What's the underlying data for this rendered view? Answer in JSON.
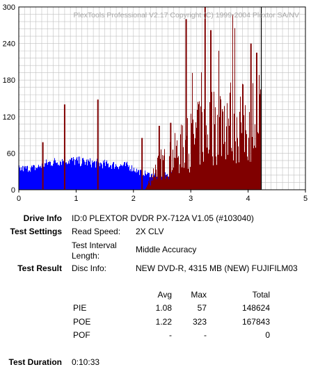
{
  "watermark": "PlexTools Professional V2.17 Copyright (C) 1999-2004 Plextor SA/NV",
  "colors": {
    "poe": "#800000",
    "pie": "#0000ff",
    "grid": "#c0c0c0",
    "marker": "#000000"
  },
  "chart_data": {
    "type": "bar",
    "xlim": [
      0,
      5
    ],
    "ylim": [
      0,
      300
    ],
    "xticks": [
      0,
      1,
      2,
      3,
      4,
      5
    ],
    "yticks": [
      0,
      60,
      120,
      180,
      240,
      300
    ],
    "grid": true,
    "end_marker_x": 4.23,
    "series": [
      {
        "name": "PIE",
        "envelope": [
          [
            0,
            35
          ],
          [
            0.3,
            37
          ],
          [
            0.5,
            45
          ],
          [
            0.8,
            50
          ],
          [
            1,
            48
          ],
          [
            1.3,
            45
          ],
          [
            1.6,
            42
          ],
          [
            1.9,
            40
          ],
          [
            2.1,
            30
          ],
          [
            2.3,
            25
          ],
          [
            2.6,
            25
          ],
          [
            2.9,
            26
          ],
          [
            3.2,
            28
          ],
          [
            3.5,
            30
          ],
          [
            3.8,
            33
          ],
          [
            4.0,
            36
          ],
          [
            4.2,
            48
          ],
          [
            4.23,
            50
          ]
        ]
      },
      {
        "name": "POE",
        "envelope": [
          [
            0,
            0
          ],
          [
            2.2,
            0
          ],
          [
            2.4,
            45
          ],
          [
            2.6,
            55
          ],
          [
            2.8,
            75
          ],
          [
            3.0,
            95
          ],
          [
            3.2,
            110
          ],
          [
            3.4,
            125
          ],
          [
            3.6,
            140
          ],
          [
            3.8,
            130
          ],
          [
            4.0,
            125
          ],
          [
            4.2,
            150
          ],
          [
            4.23,
            100
          ]
        ],
        "spikes": [
          [
            0.42,
            78
          ],
          [
            0.8,
            140
          ],
          [
            1.38,
            148
          ],
          [
            2.15,
            85
          ],
          [
            2.45,
            105
          ],
          [
            2.65,
            110
          ],
          [
            2.92,
            280
          ],
          [
            3.25,
            300
          ],
          [
            3.35,
            262
          ],
          [
            4.05,
            240
          ],
          [
            4.15,
            225
          ]
        ]
      }
    ]
  },
  "info": {
    "drive_label": "Drive Info",
    "drive_value": "ID:0 PLEXTOR DVDR PX-712A V1.05 (#103040)",
    "settings_label": "Test Settings",
    "read_speed_label": "Read Speed:",
    "read_speed_value": "2X CLV",
    "interval_label_1": "Test Interval",
    "interval_label_2": "Length:",
    "interval_value": "Middle Accuracy",
    "result_label": "Test Result",
    "disc_info_label": "Disc Info:",
    "disc_info_value": "NEW DVD-R, 4315 MB (NEW) FUJIFILM03",
    "duration_label": "Test Duration",
    "duration_value": "0:10:33"
  },
  "table": {
    "headers": [
      "",
      "Avg",
      "Max",
      "Total"
    ],
    "rows": [
      [
        "PIE",
        "1.08",
        "57",
        "148624"
      ],
      [
        "POE",
        "1.22",
        "323",
        "167843"
      ],
      [
        "POF",
        "-",
        "-",
        "0"
      ]
    ]
  }
}
